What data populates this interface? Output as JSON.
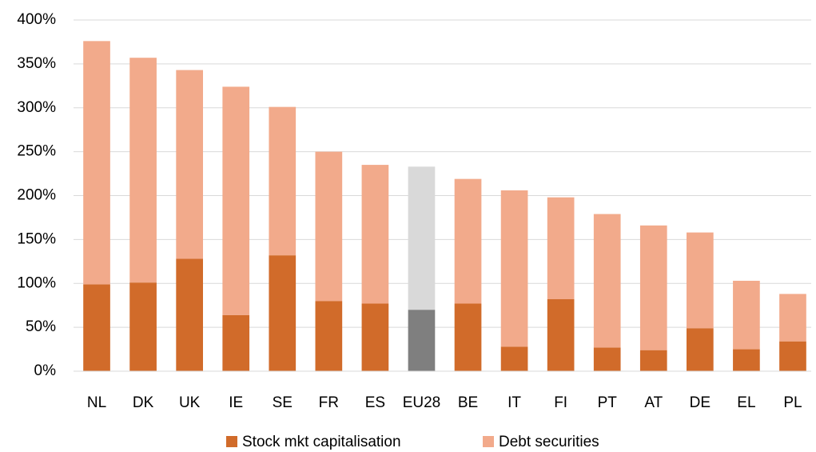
{
  "chart_data": {
    "type": "stacked_bar",
    "categories": [
      "NL",
      "DK",
      "UK",
      "IE",
      "SE",
      "FR",
      "ES",
      "EU28",
      "BE",
      "IT",
      "FI",
      "PT",
      "AT",
      "DE",
      "EL",
      "PL"
    ],
    "series": [
      {
        "name": "Stock mkt capitalisation",
        "color": "#d16b2a",
        "colors": [
          "#d16b2a",
          "#d16b2a",
          "#d16b2a",
          "#d16b2a",
          "#d16b2a",
          "#d16b2a",
          "#d16b2a",
          "#7f7f7f",
          "#d16b2a",
          "#d16b2a",
          "#d16b2a",
          "#d16b2a",
          "#d16b2a",
          "#d16b2a",
          "#d16b2a",
          "#d16b2a"
        ],
        "values": [
          99,
          101,
          128,
          64,
          132,
          80,
          77,
          70,
          77,
          28,
          82,
          27,
          24,
          49,
          25,
          34
        ]
      },
      {
        "name": "Debt securities",
        "color": "#f2aa8b",
        "colors": [
          "#f2aa8b",
          "#f2aa8b",
          "#f2aa8b",
          "#f2aa8b",
          "#f2aa8b",
          "#f2aa8b",
          "#f2aa8b",
          "#d9d9d9",
          "#f2aa8b",
          "#f2aa8b",
          "#f2aa8b",
          "#f2aa8b",
          "#f2aa8b",
          "#f2aa8b",
          "#f2aa8b",
          "#f2aa8b"
        ],
        "values": [
          277,
          256,
          215,
          260,
          169,
          170,
          158,
          163,
          142,
          178,
          116,
          152,
          142,
          109,
          78,
          54
        ]
      }
    ],
    "ylim": [
      0,
      400
    ],
    "yticks": [
      {
        "value": 0,
        "label": "0%"
      },
      {
        "value": 50,
        "label": "50%"
      },
      {
        "value": 100,
        "label": "100%"
      },
      {
        "value": 150,
        "label": "150%"
      },
      {
        "value": 200,
        "label": "200%"
      },
      {
        "value": 250,
        "label": "250%"
      },
      {
        "value": 300,
        "label": "300%"
      },
      {
        "value": 350,
        "label": "350%"
      },
      {
        "value": 400,
        "label": "400%"
      }
    ],
    "grid": true,
    "legend": "bottom"
  }
}
